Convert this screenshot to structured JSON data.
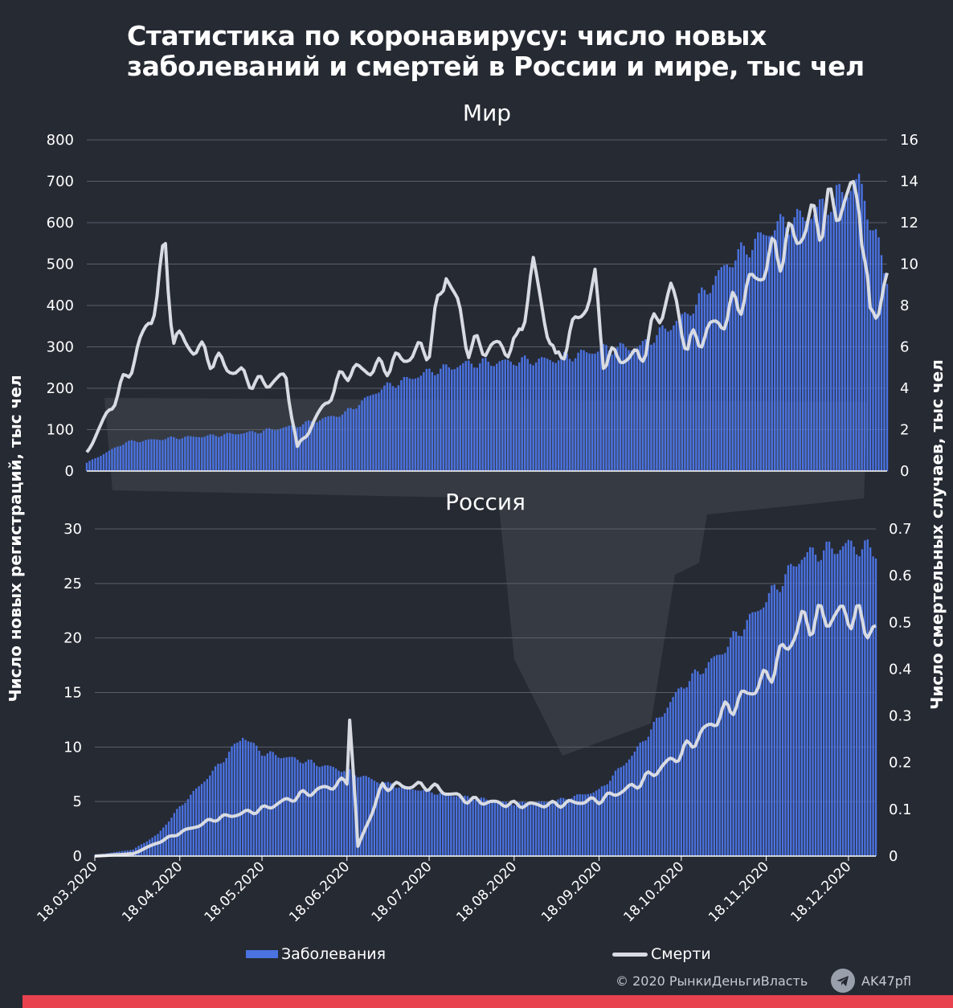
{
  "title": {
    "line1": "Статистика по коронавирусу: число новых",
    "line2": "заболеваний и смертей в России и мире, тыс чел"
  },
  "colors": {
    "background": "#262a33",
    "bars": "#4a72e0",
    "line": "#d8dbe2",
    "grid": "#5a5f6b",
    "stripe": "#e8424e"
  },
  "axis_titles": {
    "left": "Число новых регистраций, тыс чел",
    "right": "Число смертельных случаев, тыс чел"
  },
  "legend": {
    "cases": "Заболевания",
    "deaths": "Смерти"
  },
  "footer": {
    "copyright": "© 2020  РынкиДеньгиВласть",
    "telegram": "AK47pfl",
    "telegram_icon": "telegram-icon"
  },
  "chart_data": [
    {
      "type": "bar+line",
      "title": "Мир",
      "left_axis": {
        "ticks": [
          "0",
          "100",
          "200",
          "300",
          "400",
          "500",
          "600",
          "700",
          "800"
        ],
        "ylim": [
          0,
          800
        ]
      },
      "right_axis": {
        "ticks": [
          "0",
          "2",
          "4",
          "6",
          "8",
          "10",
          "12",
          "14",
          "16"
        ],
        "ylim": [
          0,
          16
        ]
      },
      "grid": true,
      "x_start": "18.03.2020",
      "x_end": "28.12.2020",
      "series": [
        {
          "name": "Заболевания",
          "kind": "bar",
          "axis": "left",
          "points": [
            [
              "18.03.2020",
              20
            ],
            [
              "01.04.2020",
              70
            ],
            [
              "18.04.2020",
              80
            ],
            [
              "01.05.2020",
              85
            ],
            [
              "18.05.2020",
              95
            ],
            [
              "01.06.2020",
              110
            ],
            [
              "18.06.2020",
              140
            ],
            [
              "01.07.2020",
              200
            ],
            [
              "18.07.2020",
              240
            ],
            [
              "01.08.2020",
              260
            ],
            [
              "18.08.2020",
              265
            ],
            [
              "01.09.2020",
              270
            ],
            [
              "18.09.2020",
              295
            ],
            [
              "01.10.2020",
              300
            ],
            [
              "18.10.2020",
              380
            ],
            [
              "01.11.2020",
              500
            ],
            [
              "18.11.2020",
              590
            ],
            [
              "01.12.2020",
              620
            ],
            [
              "18.12.2020",
              700
            ],
            [
              "28.12.2020",
              470
            ]
          ]
        },
        {
          "name": "Смерти",
          "kind": "line",
          "axis": "right",
          "points": [
            [
              "18.03.2020",
              0.9
            ],
            [
              "01.04.2020",
              4.5
            ],
            [
              "10.04.2020",
              7.5
            ],
            [
              "15.04.2020",
              10.5
            ],
            [
              "18.04.2020",
              6.5
            ],
            [
              "01.05.2020",
              5.5
            ],
            [
              "18.05.2020",
              4.2
            ],
            [
              "28.05.2020",
              4.5
            ],
            [
              "01.06.2020",
              1.1
            ],
            [
              "18.06.2020",
              4.8
            ],
            [
              "01.07.2020",
              5
            ],
            [
              "18.07.2020",
              6
            ],
            [
              "24.07.2020",
              9.8
            ],
            [
              "01.08.2020",
              6
            ],
            [
              "18.08.2020",
              6
            ],
            [
              "24.08.2020",
              9.8
            ],
            [
              "01.09.2020",
              5.2
            ],
            [
              "15.09.2020",
              9
            ],
            [
              "18.09.2020",
              5.5
            ],
            [
              "01.10.2020",
              5.5
            ],
            [
              "12.10.2020",
              8.8
            ],
            [
              "18.10.2020",
              6
            ],
            [
              "01.11.2020",
              7.5
            ],
            [
              "18.11.2020",
              10.5
            ],
            [
              "01.12.2020",
              12
            ],
            [
              "18.12.2020",
              13.5
            ],
            [
              "22.12.2020",
              7.2
            ],
            [
              "28.12.2020",
              9.2
            ]
          ]
        }
      ]
    },
    {
      "type": "bar+line",
      "title": "Россия",
      "left_axis": {
        "ticks": [
          "0",
          "5",
          "10",
          "15",
          "20",
          "25",
          "30"
        ],
        "ylim": [
          0,
          30
        ]
      },
      "right_axis": {
        "ticks": [
          "0",
          "0.1",
          "0.2",
          "0.3",
          "0.4",
          "0.5",
          "0.6",
          "0.7"
        ],
        "ylim": [
          0,
          0.7
        ]
      },
      "grid": true,
      "x_start": "18.03.2020",
      "x_end": "28.12.2020",
      "x_ticks": [
        "18.03.2020",
        "18.04.2020",
        "18.05.2020",
        "18.06.2020",
        "18.07.2020",
        "18.08.2020",
        "18.09.2020",
        "18.10.2020",
        "18.11.2020",
        "18.12.2020"
      ],
      "series": [
        {
          "name": "Заболевания",
          "kind": "bar",
          "axis": "left",
          "points": [
            [
              "18.03.2020",
              0.1
            ],
            [
              "01.04.2020",
              0.6
            ],
            [
              "10.04.2020",
              2
            ],
            [
              "18.04.2020",
              4.5
            ],
            [
              "01.05.2020",
              8
            ],
            [
              "11.05.2020",
              11
            ],
            [
              "18.05.2020",
              9.5
            ],
            [
              "01.06.2020",
              8.8
            ],
            [
              "18.06.2020",
              7.8
            ],
            [
              "01.07.2020",
              6.7
            ],
            [
              "18.07.2020",
              5.9
            ],
            [
              "01.08.2020",
              5.4
            ],
            [
              "18.08.2020",
              4.8
            ],
            [
              "01.09.2020",
              5
            ],
            [
              "18.09.2020",
              6
            ],
            [
              "01.10.2020",
              9.5
            ],
            [
              "18.10.2020",
              15.5
            ],
            [
              "01.11.2020",
              18.5
            ],
            [
              "18.11.2020",
              23.5
            ],
            [
              "01.12.2020",
              27.5
            ],
            [
              "18.12.2020",
              28.5
            ],
            [
              "28.12.2020",
              28
            ]
          ]
        },
        {
          "name": "Смерти",
          "kind": "line",
          "axis": "right",
          "points": [
            [
              "18.03.2020",
              0
            ],
            [
              "01.04.2020",
              0.005
            ],
            [
              "18.04.2020",
              0.05
            ],
            [
              "01.05.2020",
              0.08
            ],
            [
              "18.05.2020",
              0.1
            ],
            [
              "01.06.2020",
              0.13
            ],
            [
              "18.06.2020",
              0.16
            ],
            [
              "19.06.2020",
              0.31
            ],
            [
              "22.06.2020",
              0.02
            ],
            [
              "01.07.2020",
              0.15
            ],
            [
              "18.07.2020",
              0.15
            ],
            [
              "01.08.2020",
              0.12
            ],
            [
              "18.08.2020",
              0.11
            ],
            [
              "01.09.2020",
              0.11
            ],
            [
              "18.09.2020",
              0.12
            ],
            [
              "01.10.2020",
              0.15
            ],
            [
              "18.10.2020",
              0.22
            ],
            [
              "01.11.2020",
              0.3
            ],
            [
              "18.11.2020",
              0.38
            ],
            [
              "01.12.2020",
              0.5
            ],
            [
              "18.12.2020",
              0.52
            ],
            [
              "28.12.2020",
              0.48
            ]
          ]
        }
      ]
    }
  ]
}
